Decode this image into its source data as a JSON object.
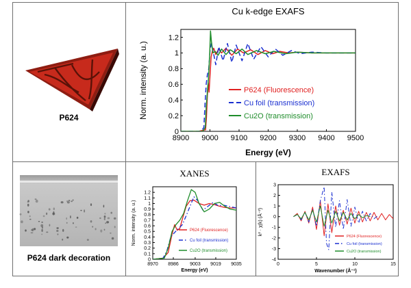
{
  "samples": {
    "top_caption": "P624",
    "bottom_caption": "P624 dark decoration"
  },
  "colors": {
    "fluorescence": "#e02020",
    "cu_foil": "#1a2fd0",
    "cu2o": "#1e8c2a",
    "shard_red": "#c72a1c",
    "shard_dark": "#5a1208",
    "micrograph": "#b9b9b9"
  },
  "chart_data": [
    {
      "id": "main",
      "type": "line",
      "title": "Cu k-edge EXAFS",
      "xlabel": "Energy (eV)",
      "ylabel": "Norm. intensity (a. u.)",
      "xlim": [
        8900,
        9500
      ],
      "ylim": [
        0,
        1.3
      ],
      "xticks": [
        8900,
        9000,
        9100,
        9200,
        9300,
        9400,
        9500
      ],
      "yticks": [
        0,
        0.2,
        0.4,
        0.6,
        0.8,
        1,
        1.2
      ],
      "legend_position": "center-right",
      "series": [
        {
          "name": "P624 (Fluorescence)",
          "color_key": "fluorescence",
          "dash": "solid",
          "x": [
            8900,
            8960,
            8985,
            8988,
            8991,
            8994,
            8997,
            9000,
            9004,
            9008,
            9013,
            9020,
            9030,
            9040,
            9055,
            9075,
            9095,
            9115,
            9140,
            9165,
            9190,
            9215,
            9240,
            9270,
            9300,
            9350,
            9400,
            9450,
            9500
          ],
          "y": [
            0,
            0,
            0.02,
            0.18,
            0.45,
            0.62,
            0.5,
            0.7,
            0.95,
            1.02,
            1.06,
            0.98,
            1.05,
            1.0,
            1.06,
            0.97,
            1.05,
            1.0,
            1.04,
            0.98,
            1.03,
            0.99,
            1.02,
            1.0,
            1.01,
            1.0,
            1.0,
            1.0,
            1.0
          ]
        },
        {
          "name": "Cu foil (transmission)",
          "color_key": "cu_foil",
          "dash": "dash",
          "x": [
            8900,
            8970,
            8979,
            8983,
            8987,
            8991,
            8996,
            9000,
            9005,
            9012,
            9020,
            9030,
            9045,
            9060,
            9075,
            9090,
            9110,
            9130,
            9150,
            9175,
            9200,
            9225,
            9250,
            9280,
            9310,
            9350,
            9400,
            9450,
            9500
          ],
          "y": [
            0,
            0,
            0.05,
            0.35,
            0.6,
            0.72,
            0.8,
            1.02,
            1.12,
            1.0,
            0.85,
            1.08,
            0.9,
            1.12,
            0.88,
            1.1,
            0.9,
            1.12,
            0.92,
            1.08,
            0.95,
            1.05,
            0.97,
            1.03,
            0.99,
            1.01,
            1.0,
            1.0,
            1.0
          ]
        },
        {
          "name": "Cu2O (transmission)",
          "color_key": "cu2o",
          "dash": "solid",
          "x": [
            8900,
            8975,
            8984,
            8987,
            8991,
            8995,
            8999,
            9002,
            9005,
            9010,
            9018,
            9028,
            9040,
            9055,
            9070,
            9090,
            9110,
            9130,
            9160,
            9190,
            9220,
            9260,
            9300,
            9350,
            9400,
            9450,
            9500
          ],
          "y": [
            0,
            0,
            0.05,
            0.3,
            0.5,
            0.68,
            0.98,
            1.28,
            1.15,
            1.0,
            1.02,
            0.97,
            1.05,
            0.98,
            1.04,
            0.99,
            1.05,
            0.98,
            1.03,
            0.99,
            1.02,
            0.99,
            1.01,
            1.0,
            1.0,
            1.0,
            1.0
          ]
        }
      ]
    },
    {
      "id": "xanes",
      "type": "line",
      "title": "XANES",
      "xlabel": "Energy (eV)",
      "ylabel": "Norm. intensity (a. u.)",
      "xlim": [
        8970,
        9035
      ],
      "ylim": [
        0,
        1.3
      ],
      "xticks": [
        8970,
        8986,
        9003,
        9019,
        9035
      ],
      "yticks": [
        0,
        0.1,
        0.2,
        0.3,
        0.4,
        0.5,
        0.6,
        0.7,
        0.8,
        0.9,
        1,
        1.1,
        1.2
      ],
      "legend_position": "bottom-center",
      "series": [
        {
          "name": "P624 (Fluorescence)",
          "color_key": "fluorescence",
          "dash": "solid",
          "x": [
            8970,
            8978,
            8982,
            8985,
            8987,
            8989,
            8991,
            8993,
            8996,
            8999,
            9002,
            9006,
            9010,
            9014,
            9018,
            9022,
            9026,
            9030,
            9035
          ],
          "y": [
            0,
            0.02,
            0.12,
            0.45,
            0.62,
            0.52,
            0.55,
            0.72,
            0.95,
            1.05,
            1.06,
            1.0,
            0.97,
            1.0,
            0.98,
            0.95,
            0.93,
            0.92,
            0.92
          ]
        },
        {
          "name": "Cu foil (transmission)",
          "color_key": "cu_foil",
          "dash": "dashdot",
          "x": [
            8970,
            8978,
            8981,
            8984,
            8987,
            8990,
            8993,
            8996,
            8999,
            9002,
            9005,
            9009,
            9013,
            9017,
            9021,
            9025,
            9029,
            9035
          ],
          "y": [
            0,
            0.02,
            0.15,
            0.4,
            0.48,
            0.55,
            0.62,
            0.78,
            0.95,
            1.12,
            1.05,
            0.88,
            0.95,
            1.02,
            0.96,
            0.97,
            0.95,
            0.92
          ]
        },
        {
          "name": "Cu2O (transmission)",
          "color_key": "cu2o",
          "dash": "solid",
          "x": [
            8970,
            8979,
            8982,
            8985,
            8988,
            8991,
            8994,
            8997,
            9000,
            9003,
            9006,
            9010,
            9014,
            9018,
            9022,
            9026,
            9030,
            9035
          ],
          "y": [
            0,
            0.02,
            0.2,
            0.5,
            0.62,
            0.7,
            0.82,
            1.05,
            1.25,
            1.2,
            1.0,
            0.85,
            0.9,
            1.0,
            1.02,
            0.95,
            0.9,
            0.88
          ]
        }
      ]
    },
    {
      "id": "exafs",
      "type": "line",
      "title": "EXAFS",
      "xlabel": "Wavenumber (Å⁻¹)",
      "ylabel": "k² · χ(k) (Å⁻²)",
      "xlim": [
        0,
        15
      ],
      "ylim": [
        -4,
        3
      ],
      "xticks": [
        0,
        5,
        10,
        15
      ],
      "yticks": [
        -4,
        -3,
        -2,
        -1,
        0,
        1,
        2,
        3
      ],
      "legend_position": "bottom-right",
      "series": [
        {
          "name": "P624 (Fluorescence)",
          "color_key": "fluorescence",
          "dash": "solid",
          "x": [
            2,
            2.5,
            3,
            3.5,
            4,
            4.5,
            5,
            5.5,
            6,
            6.5,
            7,
            7.5,
            8,
            8.5,
            9,
            9.5,
            10,
            10.5,
            11,
            11.5,
            12,
            12.5,
            13,
            13.5,
            14,
            14.5,
            15
          ],
          "y": [
            0,
            0.3,
            -0.4,
            0.5,
            -0.6,
            0.9,
            -1.2,
            1.5,
            -1.8,
            1.2,
            -1.5,
            1.0,
            -0.8,
            0.6,
            -0.7,
            0.8,
            -0.6,
            0.5,
            -0.5,
            0.4,
            -0.4,
            0.4,
            -0.3,
            0.3,
            -0.3,
            0.2,
            -0.2
          ]
        },
        {
          "name": "Cu foil (transmission)",
          "color_key": "cu_foil",
          "dash": "dashdot",
          "x": [
            2,
            2.5,
            3,
            3.5,
            4,
            4.5,
            5,
            5.5,
            6,
            6.3,
            6.6,
            7,
            7.5,
            8,
            8.5,
            9,
            9.5,
            10,
            10.5,
            11,
            11.5,
            12,
            12.5,
            13
          ],
          "y": [
            0,
            0.2,
            -0.3,
            0.4,
            -0.5,
            0.7,
            -0.9,
            1.5,
            2.8,
            -2.5,
            -3.1,
            2.3,
            -1.0,
            1.5,
            -1.2,
            1.6,
            -0.9,
            0.9,
            -0.6,
            0.5,
            -0.4,
            0.3,
            -0.2,
            0.1
          ]
        },
        {
          "name": "Cu2O (transmission)",
          "color_key": "cu2o",
          "dash": "solid",
          "x": [
            2,
            2.5,
            3,
            3.5,
            4,
            4.5,
            5,
            5.5,
            6,
            6.5,
            7,
            7.5,
            8,
            8.5,
            9,
            9.5,
            10,
            10.5,
            11,
            11.5,
            12
          ],
          "y": [
            0,
            0.2,
            -0.2,
            0.4,
            -0.3,
            0.6,
            -0.5,
            1.0,
            -0.9,
            0.6,
            -0.6,
            0.5,
            -0.4,
            0.4,
            -0.3,
            0.3,
            -0.2,
            0.2,
            -0.1,
            0.1,
            0
          ]
        }
      ]
    }
  ]
}
